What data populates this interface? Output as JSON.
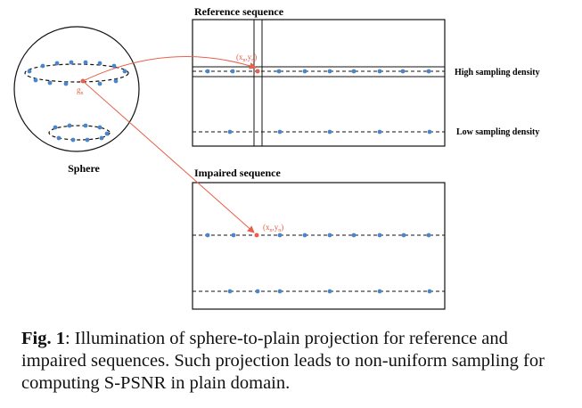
{
  "figure": {
    "sphere_label": "Sphere",
    "point_label_sphere": "g",
    "point_label_sphere_sub": "n",
    "reference_title": "Reference sequence",
    "impaired_title": "Impaired sequence",
    "ref_point_label": "(x",
    "ref_point_sub1": "n",
    "ref_point_mid": ",y",
    "ref_point_sub2": "n",
    "ref_point_end": ")",
    "imp_point_label": "(x",
    "imp_point_sub1": "n",
    "imp_point_mid": ",y",
    "imp_point_sub2": "n",
    "imp_point_end": ")",
    "high_density_label": "High sampling density",
    "low_density_label": "Low sampling density",
    "colors": {
      "sample_point": "#4a86c8",
      "highlight": "#e8604c",
      "line": "#111111"
    }
  },
  "caption": {
    "label": "Fig. 1",
    "text": ": Illumination of sphere-to-plain projection for reference and impaired sequences. Such projection leads to non-uniform sampling for computing S-PSNR in plain domain."
  }
}
